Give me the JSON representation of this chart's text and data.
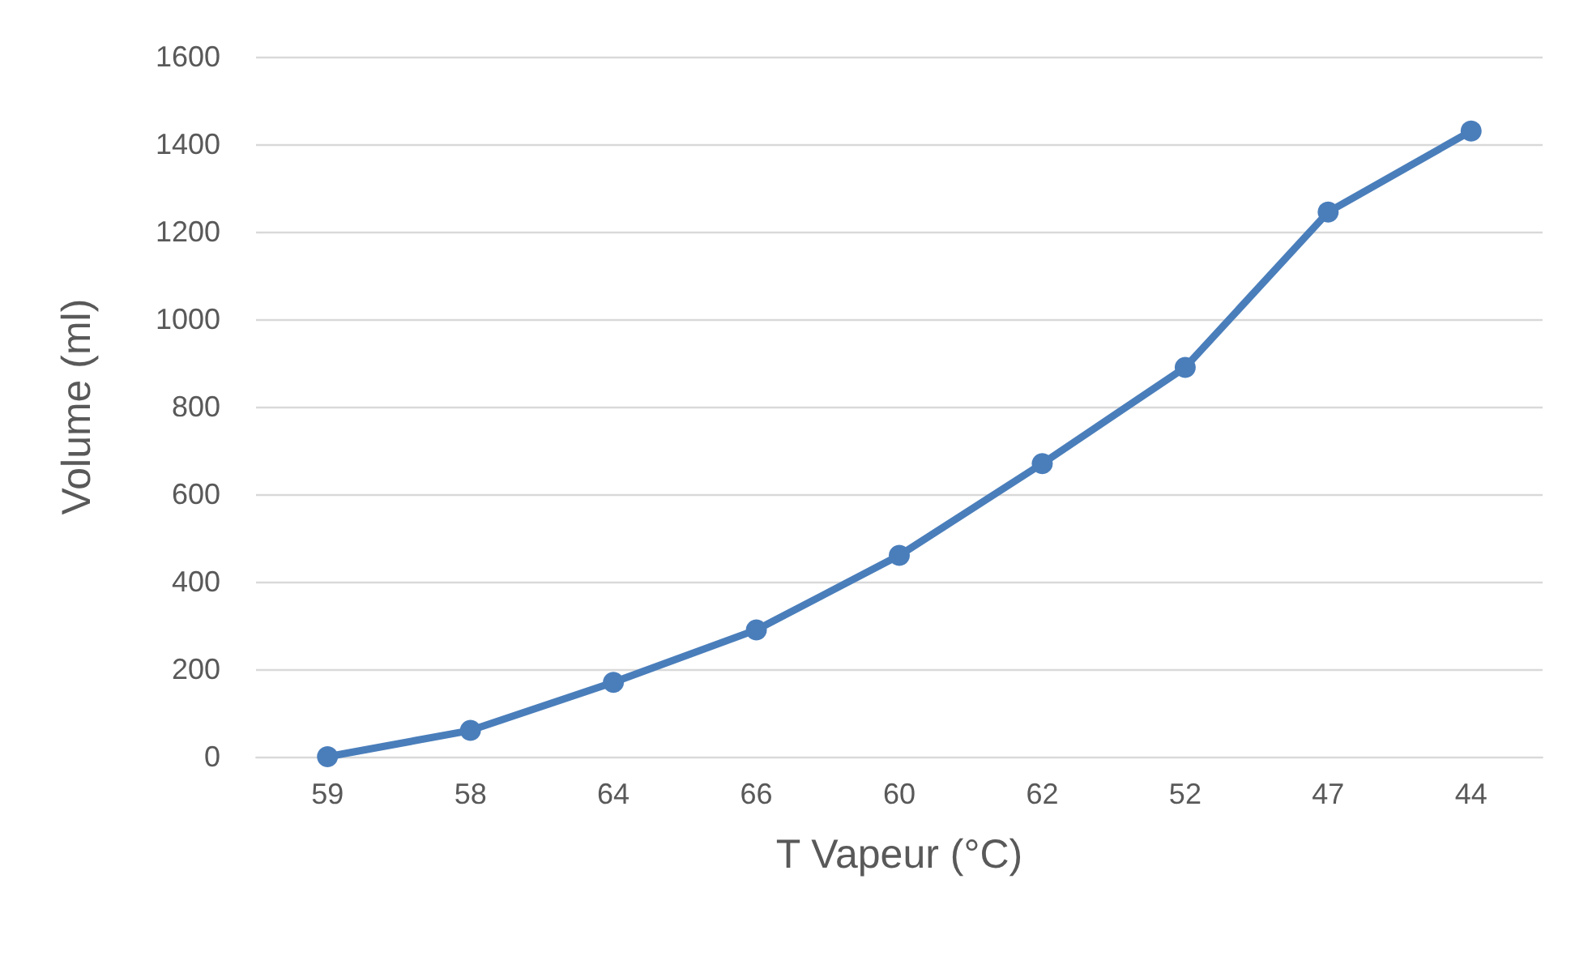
{
  "chart_data": {
    "type": "line",
    "xlabel": "T Vapeur (°C)",
    "ylabel": "Volume (ml)",
    "categories": [
      "59",
      "58",
      "64",
      "66",
      "60",
      "62",
      "52",
      "47",
      "44"
    ],
    "series": [
      {
        "color": "#4a7ebb",
        "values": [
          0,
          60,
          170,
          290,
          460,
          670,
          890,
          1245,
          1430
        ]
      }
    ],
    "ylim": [
      0,
      1600
    ],
    "yticks": [
      0,
      200,
      400,
      600,
      800,
      1000,
      1200,
      1400,
      1600
    ],
    "grid": "y",
    "marker": "circle",
    "line_style": "solid"
  }
}
